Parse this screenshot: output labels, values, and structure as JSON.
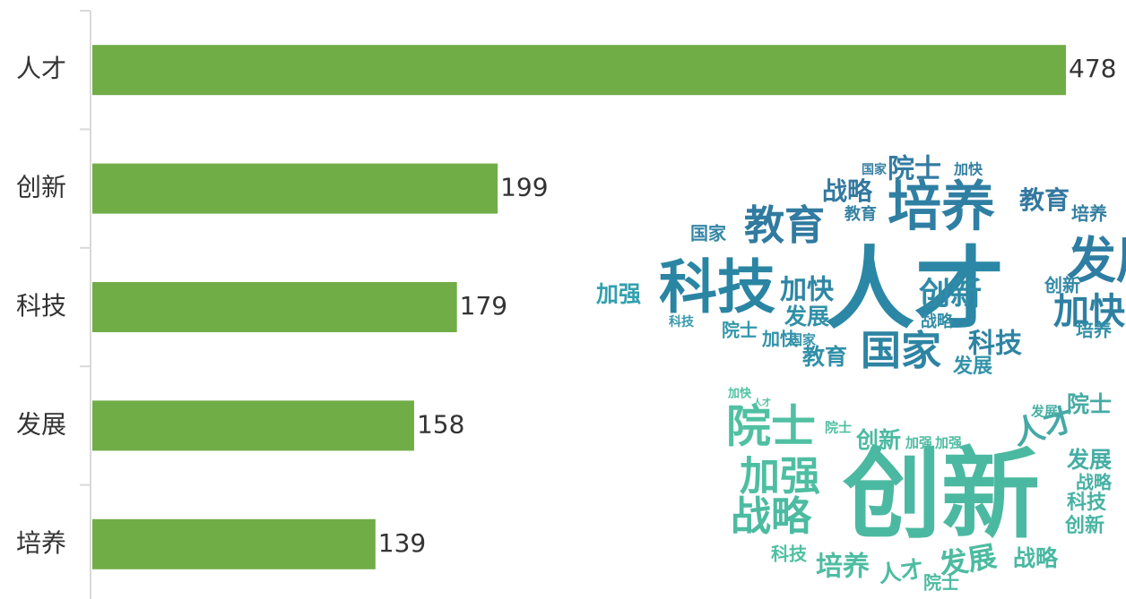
{
  "chart_data": {
    "type": "bar",
    "orientation": "horizontal",
    "categories": [
      "人才",
      "创新",
      "科技",
      "发展",
      "培养"
    ],
    "values": [
      478,
      199,
      179,
      158,
      139
    ],
    "color": "#70ad47"
  },
  "word_cloud": {
    "words": [
      "人才",
      "培养",
      "科技",
      "教育",
      "国家",
      "发展",
      "加快",
      "创新",
      "院士",
      "战略",
      "加快",
      "科技",
      "发展",
      "教育",
      "教育",
      "加强",
      "发展",
      "培养",
      "创新",
      "国家",
      "院士",
      "加快",
      "战略",
      "培养",
      "教育",
      "加快",
      "国家",
      "科技",
      "国家",
      "创新",
      "院士",
      "加强",
      "战略",
      "人才",
      "发展",
      "战略",
      "科技",
      "创新",
      "发展",
      "培养",
      "人才",
      "战略",
      "院士",
      "科技",
      "创新",
      "加强",
      "加强",
      "院士",
      "发展",
      "院士",
      "加快",
      "人才"
    ]
  }
}
